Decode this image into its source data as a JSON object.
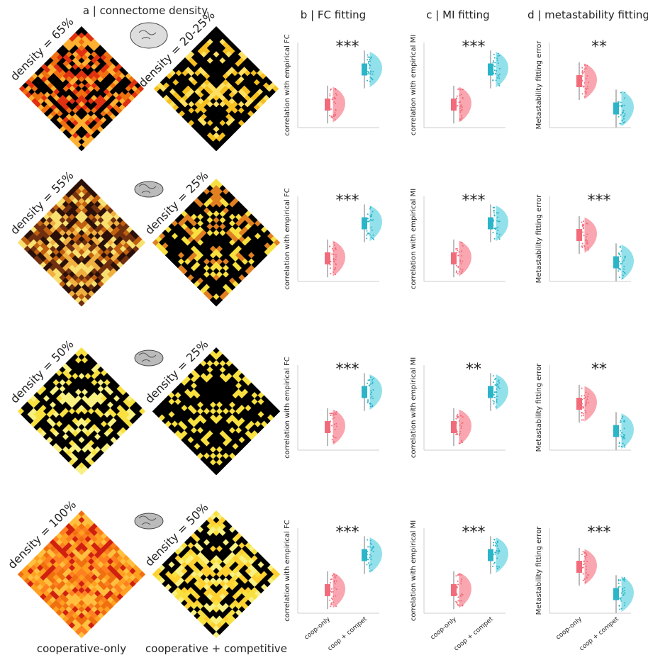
{
  "panels": {
    "a": "a | connectome density",
    "b": "b | FC fitting",
    "c": "c | MI fitting",
    "d": "d | metastability fitting"
  },
  "rows": [
    {
      "density_left": "density = 65%",
      "density_right": "density = 20-25%",
      "stars": [
        "***",
        "***",
        "**"
      ]
    },
    {
      "density_left": "density = 55%",
      "density_right": "density = 25%",
      "stars": [
        "***",
        "***",
        "***"
      ]
    },
    {
      "density_left": "density = 50%",
      "density_right": "density = 25%",
      "stars": [
        "***",
        "**",
        "**"
      ]
    },
    {
      "density_left": "density = 100%",
      "density_right": "density = 50%",
      "stars": [
        "***",
        "***",
        "***"
      ]
    }
  ],
  "y_labels": [
    "correlation with empirical FC",
    "correlation with empirical MI",
    "Metastability fitting error"
  ],
  "x_categories": [
    "coop-only",
    "coop + compet"
  ],
  "footer": [
    "cooperative-only",
    "cooperative + competitive"
  ]
}
